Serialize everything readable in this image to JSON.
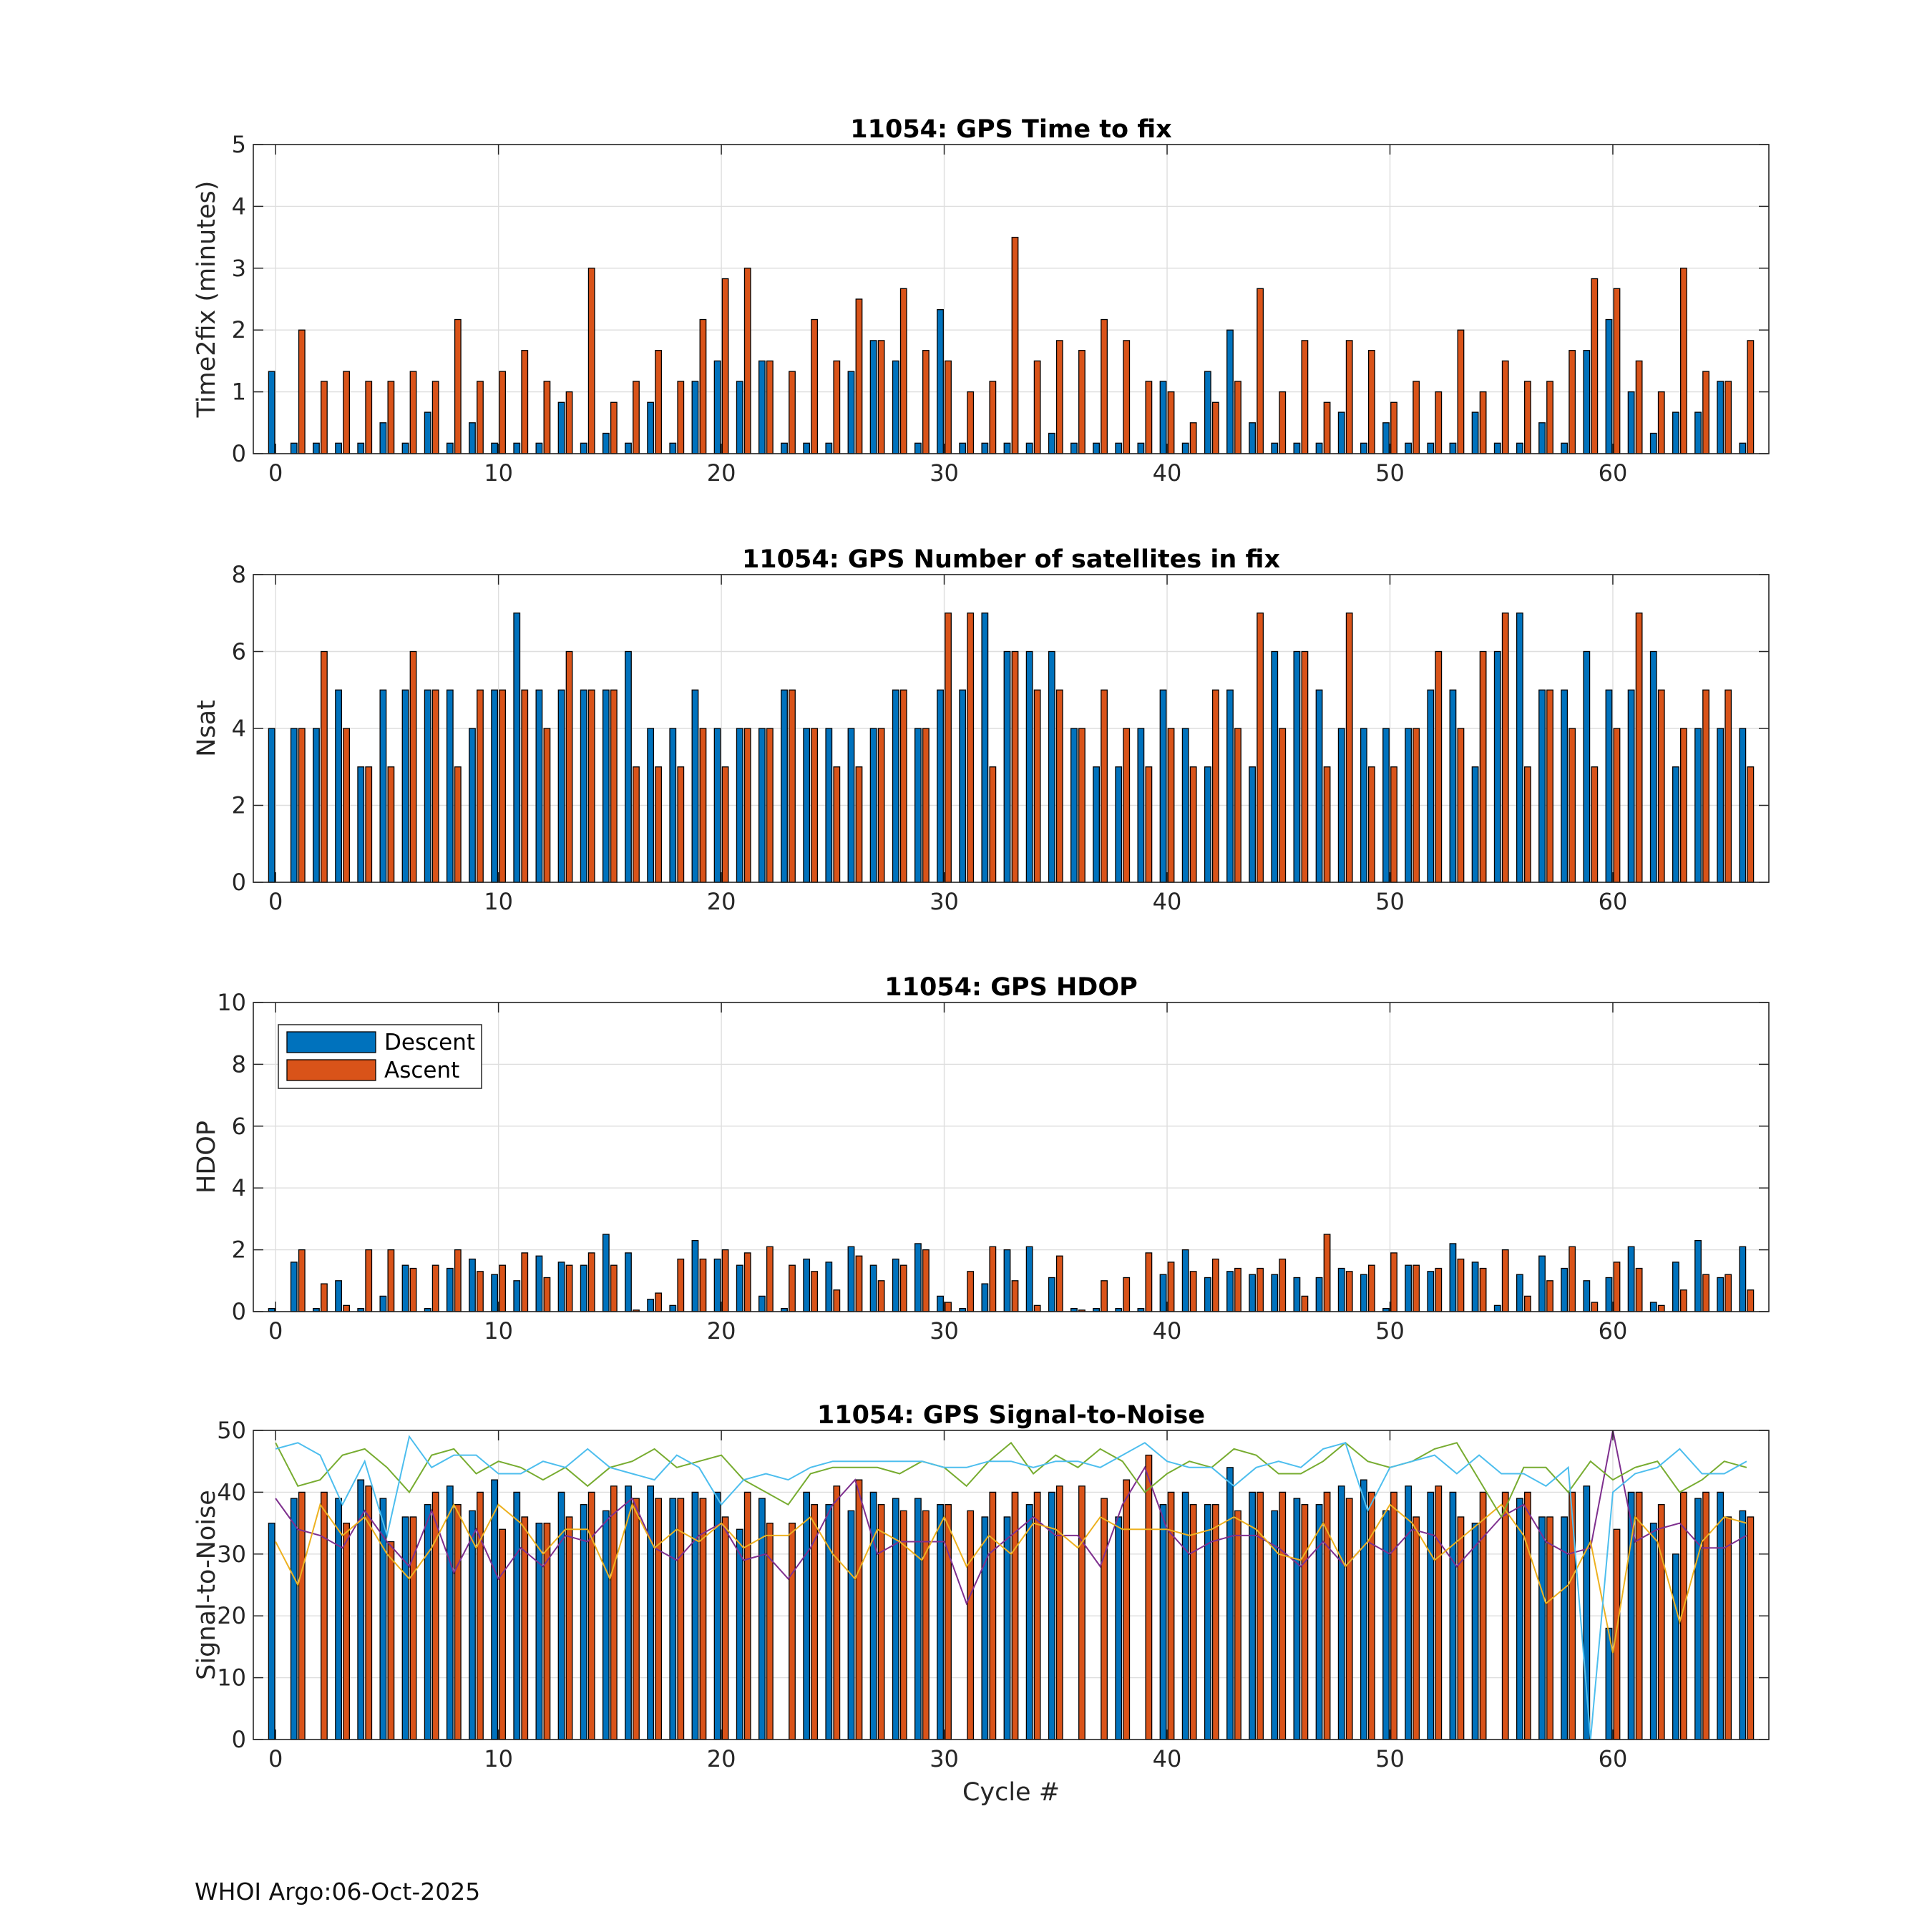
{
  "footer": "WHOI Argo:06-Oct-2025",
  "colors": {
    "descent": "#0072BD",
    "ascent": "#D95319",
    "snr_lines": [
      "#7E2F8E",
      "#EDB120",
      "#77AC30",
      "#4DBEEE"
    ]
  },
  "chart_data": [
    {
      "id": "ttf",
      "type": "bar",
      "title": "11054: GPS Time to fix",
      "xlabel": "",
      "ylabel": "Time2fix (minutes)",
      "xlim": [
        -1,
        67
      ],
      "ylim": [
        0,
        5
      ],
      "xticks": [
        0,
        10,
        20,
        30,
        40,
        50,
        60
      ],
      "yticks": [
        0,
        1,
        2,
        3,
        4,
        5
      ],
      "series": [
        {
          "name": "Descent",
          "values": [
            1.33,
            0.17,
            0.17,
            0.17,
            0.17,
            0.5,
            0.17,
            0.67,
            0.17,
            0.5,
            0.17,
            0.17,
            0.17,
            0.83,
            0.17,
            0.33,
            0.17,
            0.83,
            0.17,
            1.17,
            1.5,
            1.17,
            1.5,
            0.17,
            0.17,
            0.17,
            1.33,
            1.83,
            1.5,
            0.17,
            2.33,
            0.17,
            0.17,
            0.17,
            0.17,
            0.33,
            0.17,
            0.17,
            0.17,
            0.17,
            1.17,
            0.17,
            1.33,
            2.0,
            0.5,
            0.17,
            0.17,
            0.17,
            0.67,
            0.17,
            0.5,
            0.17,
            0.17,
            0.17,
            0.67,
            0.17,
            0.17,
            0.5,
            0.17,
            1.67,
            2.17,
            1.0,
            0.33,
            0.67,
            0.67,
            1.17,
            0.17
          ]
        },
        {
          "name": "Ascent",
          "values": [
            0,
            2.0,
            1.17,
            1.33,
            1.17,
            1.17,
            1.33,
            1.17,
            2.17,
            1.17,
            1.33,
            1.67,
            1.17,
            1.0,
            3.0,
            0.83,
            1.17,
            1.67,
            1.17,
            2.17,
            2.83,
            3.0,
            1.5,
            1.33,
            2.17,
            1.5,
            2.5,
            1.83,
            2.67,
            1.67,
            1.5,
            1.0,
            1.17,
            3.5,
            1.5,
            1.83,
            1.67,
            2.17,
            1.83,
            1.17,
            1.0,
            0.5,
            0.83,
            1.17,
            2.67,
            1.0,
            1.83,
            0.83,
            1.83,
            1.67,
            0.83,
            1.17,
            1.0,
            2.0,
            1.0,
            1.5,
            1.17,
            1.17,
            1.67,
            2.83,
            2.67,
            1.5,
            1.0,
            3.0,
            1.33,
            1.17,
            1.83
          ]
        }
      ]
    },
    {
      "id": "nsat",
      "type": "bar",
      "title": "11054: GPS Number of satellites in fix",
      "xlabel": "",
      "ylabel": "Nsat",
      "xlim": [
        -1,
        67
      ],
      "ylim": [
        0,
        8
      ],
      "xticks": [
        0,
        10,
        20,
        30,
        40,
        50,
        60
      ],
      "yticks": [
        0,
        2,
        4,
        6,
        8
      ],
      "series": [
        {
          "name": "Descent",
          "values": [
            4,
            4,
            4,
            5,
            3,
            5,
            5,
            5,
            5,
            4,
            5,
            7,
            5,
            5,
            5,
            5,
            6,
            4,
            4,
            5,
            4,
            4,
            4,
            5,
            4,
            4,
            4,
            4,
            5,
            4,
            5,
            5,
            7,
            6,
            6,
            6,
            4,
            3,
            3,
            4,
            5,
            4,
            3,
            5,
            3,
            6,
            6,
            5,
            4,
            4,
            4,
            4,
            5,
            5,
            3,
            6,
            7,
            5,
            5,
            6,
            5,
            5,
            6,
            3,
            4,
            4,
            4
          ]
        },
        {
          "name": "Ascent",
          "values": [
            0,
            4,
            6,
            4,
            3,
            3,
            6,
            5,
            3,
            5,
            5,
            5,
            4,
            6,
            5,
            5,
            3,
            3,
            3,
            4,
            3,
            4,
            4,
            5,
            4,
            3,
            3,
            4,
            5,
            4,
            7,
            7,
            3,
            6,
            5,
            5,
            4,
            5,
            4,
            3,
            4,
            3,
            5,
            4,
            7,
            4,
            6,
            3,
            7,
            3,
            3,
            4,
            6,
            4,
            6,
            7,
            3,
            5,
            4,
            3,
            4,
            7,
            5,
            4,
            5,
            5,
            3
          ]
        }
      ]
    },
    {
      "id": "hdop",
      "type": "bar",
      "title": "11054: GPS HDOP",
      "xlabel": "",
      "ylabel": "HDOP",
      "xlim": [
        -1,
        67
      ],
      "ylim": [
        0,
        10
      ],
      "xticks": [
        0,
        10,
        20,
        30,
        40,
        50,
        60
      ],
      "yticks": [
        0,
        2,
        4,
        6,
        8,
        10
      ],
      "legend": {
        "entries": [
          "Descent",
          "Ascent"
        ],
        "location": "top-left"
      },
      "series": [
        {
          "name": "Descent",
          "values": [
            0.1,
            1.6,
            0.1,
            1.0,
            0.1,
            0.5,
            1.5,
            0.1,
            1.4,
            1.7,
            1.2,
            1.0,
            1.8,
            1.6,
            1.5,
            2.5,
            1.9,
            0.4,
            0.2,
            2.3,
            1.7,
            1.5,
            0.5,
            0.1,
            1.7,
            1.6,
            2.1,
            1.5,
            1.7,
            2.2,
            0.5,
            0.1,
            0.9,
            2.0,
            2.1,
            1.1,
            0.1,
            0.1,
            0.1,
            0.1,
            1.2,
            2.0,
            1.1,
            1.3,
            1.2,
            1.2,
            1.1,
            1.1,
            1.4,
            1.2,
            0.1,
            1.5,
            1.3,
            2.2,
            1.6,
            0.2,
            1.2,
            1.8,
            1.4,
            1.0,
            1.1,
            2.1,
            0.3,
            1.6,
            2.3,
            1.1,
            2.1
          ]
        },
        {
          "name": "Ascent",
          "values": [
            0,
            2.0,
            0.9,
            0.2,
            2.0,
            2.0,
            1.4,
            1.5,
            2.0,
            1.3,
            1.5,
            1.9,
            1.1,
            1.5,
            1.9,
            1.5,
            0.05,
            0.6,
            1.7,
            1.7,
            2.0,
            1.9,
            2.1,
            1.5,
            1.3,
            0.7,
            1.8,
            1.0,
            1.5,
            2.0,
            0.3,
            1.3,
            2.1,
            1.0,
            0.2,
            1.8,
            0.05,
            1.0,
            1.1,
            1.9,
            1.6,
            1.3,
            1.7,
            1.4,
            1.4,
            1.7,
            0.5,
            2.5,
            1.3,
            1.5,
            1.9,
            1.5,
            1.4,
            1.7,
            1.4,
            2.0,
            0.5,
            1.0,
            2.1,
            0.3,
            1.6,
            1.4,
            0.2,
            0.7,
            1.2,
            1.2,
            0.7
          ]
        }
      ]
    },
    {
      "id": "snr",
      "type": "bar",
      "title": "11054: GPS Signal-to-Noise",
      "xlabel": "Cycle #",
      "ylabel": "Signal-to-Noise",
      "xlim": [
        -1,
        67
      ],
      "ylim": [
        0,
        50
      ],
      "xticks": [
        0,
        10,
        20,
        30,
        40,
        50,
        60
      ],
      "yticks": [
        0,
        10,
        20,
        30,
        40,
        50
      ],
      "series": [
        {
          "name": "Descent",
          "values": [
            35,
            39,
            0,
            39,
            42,
            39,
            36,
            38,
            41,
            37,
            42,
            40,
            35,
            40,
            38,
            37,
            41,
            41,
            39,
            40,
            40,
            34,
            39,
            0,
            40,
            38,
            37,
            40,
            39,
            39,
            38,
            0,
            36,
            36,
            38,
            40,
            0,
            0,
            36,
            0,
            38,
            40,
            38,
            44,
            40,
            37,
            39,
            38,
            41,
            42,
            37,
            41,
            40,
            40,
            35,
            0,
            39,
            36,
            36,
            41,
            18,
            40,
            35,
            30,
            39,
            40,
            37
          ]
        },
        {
          "name": "Ascent",
          "values": [
            0,
            40,
            40,
            35,
            41,
            32,
            36,
            40,
            38,
            40,
            34,
            36,
            35,
            36,
            40,
            41,
            39,
            39,
            39,
            39,
            36,
            40,
            35,
            35,
            38,
            41,
            42,
            38,
            37,
            37,
            38,
            37,
            40,
            40,
            40,
            41,
            41,
            39,
            42,
            46,
            40,
            38,
            38,
            37,
            40,
            40,
            38,
            40,
            39,
            40,
            40,
            36,
            41,
            36,
            40,
            40,
            40,
            36,
            40,
            0,
            34,
            40,
            38,
            40,
            40,
            36,
            36
          ]
        }
      ],
      "lines": [
        {
          "name": "line-purple",
          "values": [
            39,
            34,
            33,
            31,
            37,
            32,
            28,
            37,
            27,
            34,
            26,
            31,
            28,
            33,
            32,
            36,
            39,
            31,
            29,
            33,
            35,
            29,
            30,
            26,
            31,
            38,
            42,
            30,
            32,
            32,
            32,
            22,
            30,
            33,
            36,
            33,
            33,
            28,
            38,
            44,
            34,
            30,
            32,
            33,
            33,
            31,
            28,
            32,
            28,
            32,
            30,
            34,
            33,
            28,
            32,
            36,
            38,
            32,
            30,
            31,
            50,
            32,
            34,
            35,
            31,
            31,
            33
          ]
        },
        {
          "name": "line-yellow",
          "values": [
            32,
            25,
            38,
            33,
            36,
            30,
            26,
            31,
            38,
            31,
            38,
            35,
            30,
            34,
            34,
            26,
            38,
            31,
            34,
            32,
            35,
            31,
            33,
            33,
            36,
            30,
            26,
            34,
            32,
            29,
            36,
            28,
            33,
            30,
            35,
            34,
            31,
            36,
            34,
            34,
            34,
            33,
            34,
            36,
            34,
            30,
            29,
            35,
            28,
            32,
            38,
            35,
            29,
            32,
            35,
            38,
            33,
            22,
            25,
            32,
            14,
            36,
            32,
            19,
            32,
            36,
            35
          ]
        },
        {
          "name": "line-green",
          "values": [
            48,
            41,
            42,
            46,
            47,
            44,
            40,
            46,
            47,
            43,
            45,
            44,
            42,
            44,
            41,
            44,
            45,
            47,
            44,
            45,
            46,
            42,
            40,
            38,
            43,
            44,
            44,
            44,
            43,
            45,
            44,
            41,
            45,
            48,
            43,
            46,
            44,
            47,
            45,
            40,
            43,
            45,
            44,
            47,
            46,
            43,
            43,
            45,
            48,
            45,
            44,
            45,
            47,
            48,
            42,
            36,
            44,
            44,
            40,
            45,
            42,
            44,
            45,
            40,
            42,
            45,
            44
          ]
        },
        {
          "name": "line-cyan",
          "values": [
            47,
            48,
            46,
            38,
            45,
            33,
            49,
            44,
            46,
            46,
            43,
            43,
            45,
            44,
            47,
            44,
            43,
            42,
            46,
            44,
            38,
            42,
            43,
            42,
            44,
            45,
            45,
            45,
            45,
            45,
            44,
            44,
            45,
            45,
            44,
            45,
            45,
            44,
            46,
            48,
            45,
            44,
            44,
            41,
            44,
            45,
            44,
            47,
            48,
            37,
            44,
            45,
            46,
            43,
            46,
            43,
            43,
            41,
            44,
            0,
            40,
            43,
            44,
            47,
            43,
            43,
            45
          ]
        }
      ]
    }
  ]
}
